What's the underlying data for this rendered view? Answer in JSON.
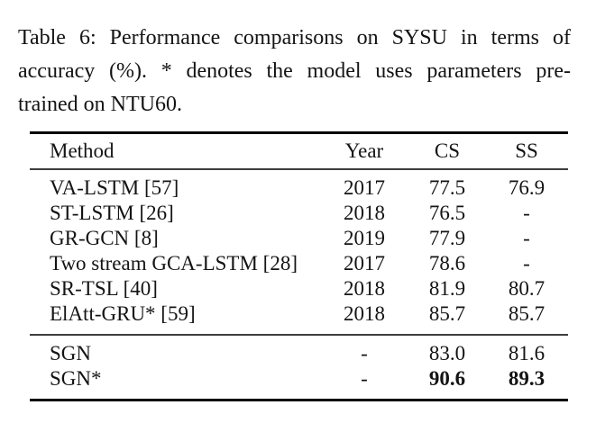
{
  "caption": {
    "label": "Table 6:",
    "lines": [
      "Table 6: Performance comparisons on SYSU in terms of",
      "accuracy (%). * denotes the model uses parameters pre-",
      "trained on NTU60."
    ]
  },
  "table": {
    "columns": [
      "Method",
      "Year",
      "CS",
      "SS"
    ],
    "groups": [
      {
        "rows": [
          {
            "method": "VA-LSTM [57]",
            "year": "2017",
            "cs": "77.5",
            "ss": "76.9",
            "bold_values": false
          },
          {
            "method": "ST-LSTM [26]",
            "year": "2018",
            "cs": "76.5",
            "ss": "-",
            "bold_values": false
          },
          {
            "method": "GR-GCN [8]",
            "year": "2019",
            "cs": "77.9",
            "ss": "-",
            "bold_values": false
          },
          {
            "method": "Two stream GCA-LSTM [28]",
            "year": "2017",
            "cs": "78.6",
            "ss": "-",
            "bold_values": false
          },
          {
            "method": "SR-TSL [40]",
            "year": "2018",
            "cs": "81.9",
            "ss": "80.7",
            "bold_values": false
          },
          {
            "method": "ElAtt-GRU* [59]",
            "year": "2018",
            "cs": "85.7",
            "ss": "85.7",
            "bold_values": false
          }
        ]
      },
      {
        "rows": [
          {
            "method": "SGN",
            "year": "-",
            "cs": "83.0",
            "ss": "81.6",
            "bold_values": false
          },
          {
            "method": "SGN*",
            "year": "-",
            "cs": "90.6",
            "ss": "89.3",
            "bold_values": true
          }
        ]
      }
    ]
  },
  "colors": {
    "background": "#ffffff",
    "text": "#141414",
    "rule_heavy": "#000000",
    "rule_light": "#3d3d3d"
  }
}
